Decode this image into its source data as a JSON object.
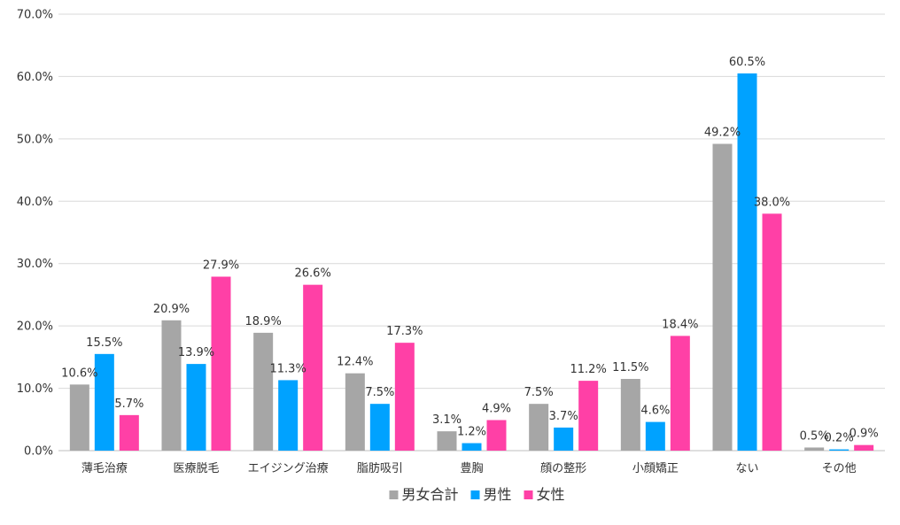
{
  "chart_data": {
    "type": "bar",
    "title": "",
    "xlabel": "",
    "ylabel": "",
    "ylim": [
      0,
      70
    ],
    "y_ticks": [
      "0.0%",
      "10.0%",
      "20.0%",
      "30.0%",
      "40.0%",
      "50.0%",
      "60.0%",
      "70.0%"
    ],
    "y_tick_values": [
      0,
      10,
      20,
      30,
      40,
      50,
      60,
      70
    ],
    "grid": true,
    "legend_position": "bottom-center",
    "categories": [
      "薄毛治療",
      "医療脱毛",
      "エイジング治療",
      "脂肪吸引",
      "豊胸",
      "顔の整形",
      "小顔矯正",
      "ない",
      "その他"
    ],
    "series": [
      {
        "name": "男女合計",
        "color": "#a6a6a6",
        "values": [
          10.6,
          20.9,
          18.9,
          12.4,
          3.1,
          7.5,
          11.5,
          49.2,
          0.5
        ],
        "labels": [
          "10.6%",
          "20.9%",
          "18.9%",
          "12.4%",
          "3.1%",
          "7.5%",
          "11.5%",
          "49.2%",
          "0.5%"
        ]
      },
      {
        "name": "男性",
        "color": "#00a2ff",
        "values": [
          15.5,
          13.9,
          11.3,
          7.5,
          1.2,
          3.7,
          4.6,
          60.5,
          0.2
        ],
        "labels": [
          "15.5%",
          "13.9%",
          "11.3%",
          "7.5%",
          "1.2%",
          "3.7%",
          "4.6%",
          "60.5%",
          "0.2%"
        ]
      },
      {
        "name": "女性",
        "color": "#ff40a6",
        "values": [
          5.7,
          27.9,
          26.6,
          17.3,
          4.9,
          11.2,
          18.4,
          38.0,
          0.9
        ],
        "labels": [
          "5.7%",
          "27.9%",
          "26.6%",
          "17.3%",
          "4.9%",
          "11.2%",
          "18.4%",
          "38.0%",
          "0.9%"
        ]
      }
    ]
  }
}
